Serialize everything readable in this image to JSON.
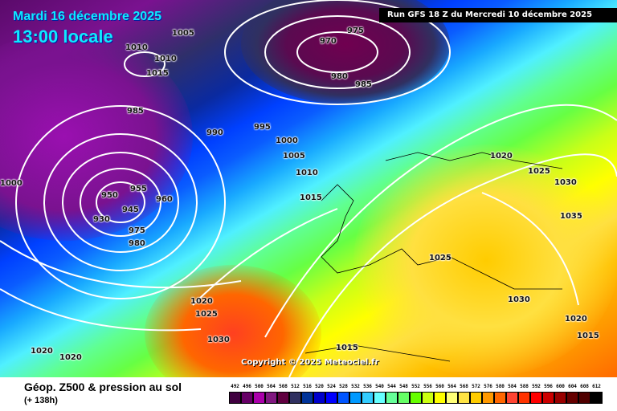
{
  "header": {
    "date": "Mardi 16 décembre 2025",
    "time": "13:00 locale",
    "run": "Run GFS 18 Z du Mercredi 10 décembre 2025"
  },
  "copyright": "Copyright © 2025 Meteociel.fr",
  "footer": {
    "title": "Géop. Z500 & pression au sol",
    "subtitle": "(+ 138h)"
  },
  "legend": {
    "values": [
      "492",
      "496",
      "500",
      "504",
      "508",
      "512",
      "516",
      "520",
      "524",
      "528",
      "532",
      "536",
      "540",
      "544",
      "548",
      "552",
      "556",
      "560",
      "564",
      "568",
      "572",
      "576",
      "580",
      "584",
      "588",
      "592",
      "596",
      "600",
      "604",
      "608",
      "612"
    ],
    "colors": [
      "#400040",
      "#660066",
      "#aa00aa",
      "#801880",
      "#600040",
      "#303060",
      "#003399",
      "#0000cc",
      "#0000ff",
      "#0055ff",
      "#0099ff",
      "#33ccff",
      "#66ffff",
      "#66ff99",
      "#66ff66",
      "#66ff00",
      "#ccff11",
      "#ffff00",
      "#ffff77",
      "#ffe444",
      "#ffcc00",
      "#ff9900",
      "#ff6600",
      "#ff4433",
      "#ff3300",
      "#ff0000",
      "#cc0000",
      "#990000",
      "#660000",
      "#500000",
      "#000000"
    ]
  },
  "isobars": [
    "1005",
    "1010",
    "1010",
    "1015",
    "975",
    "970",
    "980",
    "985",
    "985",
    "990",
    "995",
    "1000",
    "1005",
    "1010",
    "1015",
    "1000",
    "960",
    "955",
    "950",
    "945",
    "930",
    "975",
    "980",
    "1020",
    "1025",
    "1030",
    "1020",
    "1020",
    "1025",
    "1030",
    "1035",
    "1025",
    "1030",
    "1020",
    "1015",
    "1015",
    "1020"
  ]
}
